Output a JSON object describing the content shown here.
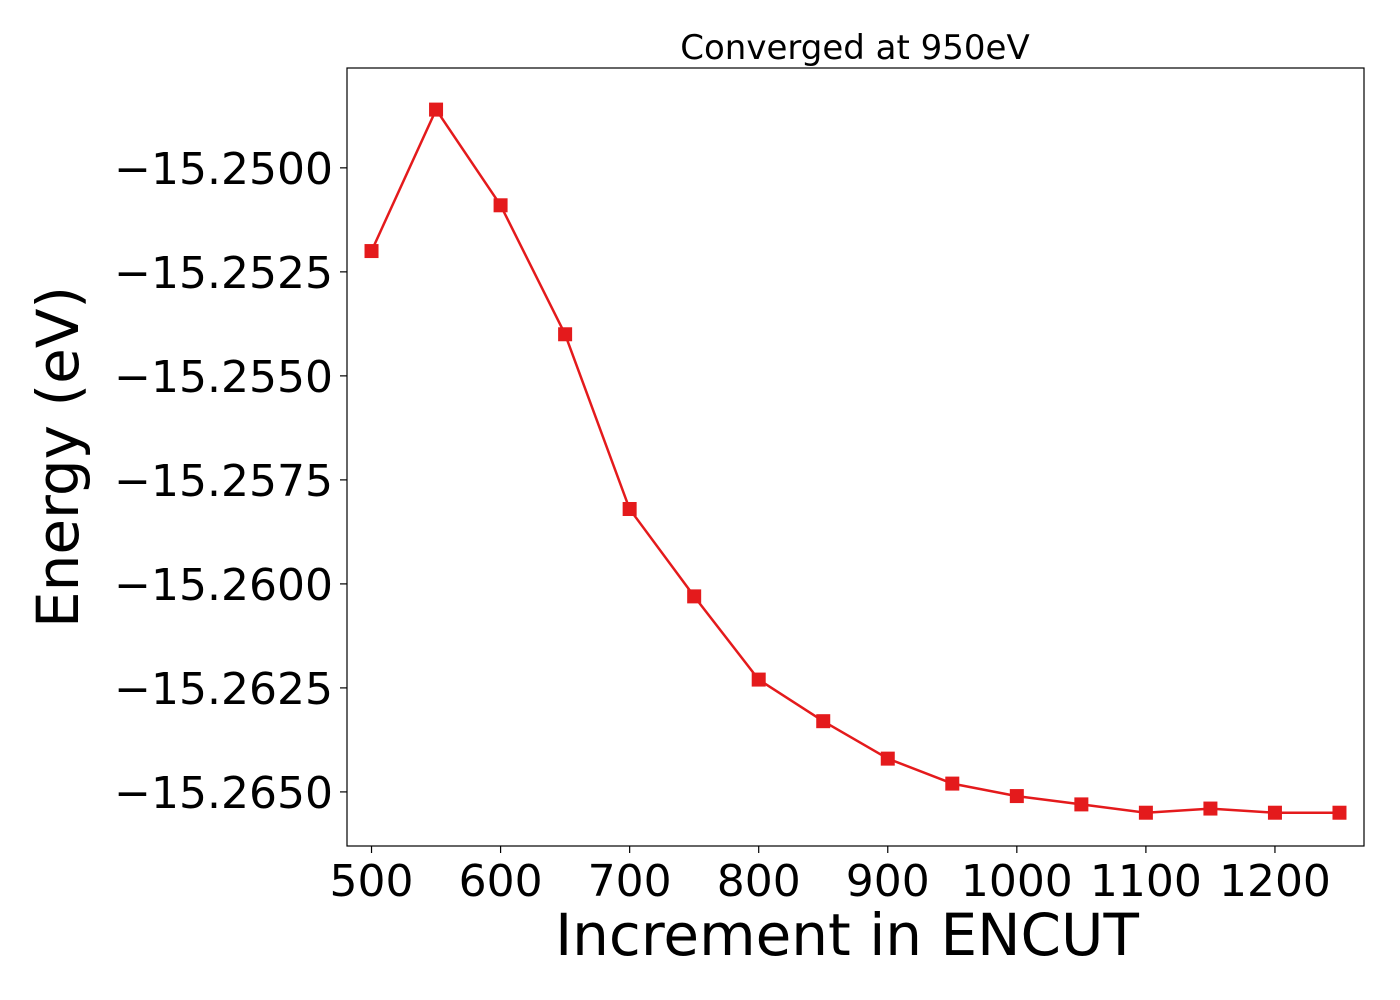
{
  "chart_data": {
    "type": "line",
    "title": "Converged at 950eV",
    "xlabel": "Increment in ENCUT",
    "ylabel": "Energy (eV)",
    "xlim": [
      481,
      1269
    ],
    "ylim": [
      -15.2663,
      -15.2476
    ],
    "xticks": [
      500,
      600,
      700,
      800,
      900,
      1000,
      1100,
      1200
    ],
    "yticks": [
      -15.25,
      -15.2525,
      -15.255,
      -15.2575,
      -15.26,
      -15.2625,
      -15.265
    ],
    "ytick_labels": [
      "−15.2500",
      "−15.2525",
      "−15.2550",
      "−15.2575",
      "−15.2600",
      "−15.2625",
      "−15.2650"
    ],
    "grid": false,
    "series": [
      {
        "color": "#e41a1c",
        "marker": "square",
        "x": [
          500,
          550,
          600,
          650,
          700,
          750,
          800,
          850,
          900,
          950,
          1000,
          1050,
          1100,
          1150,
          1200,
          1250
        ],
        "y": [
          -15.252,
          -15.2486,
          -15.2509,
          -15.254,
          -15.2582,
          -15.2603,
          -15.2623,
          -15.2633,
          -15.2642,
          -15.2648,
          -15.2651,
          -15.2653,
          -15.2655,
          -15.2654,
          -15.2655,
          -15.2655
        ]
      }
    ]
  }
}
